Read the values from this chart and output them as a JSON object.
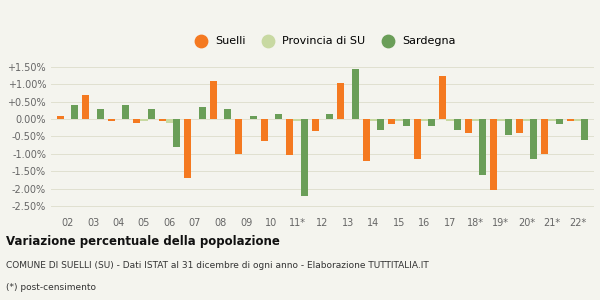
{
  "categories": [
    "02",
    "03",
    "04",
    "05",
    "06",
    "07",
    "08",
    "09",
    "10",
    "11*",
    "12",
    "13",
    "14",
    "15",
    "16",
    "17",
    "18*",
    "19*",
    "20*",
    "21*",
    "22*"
  ],
  "suelli": [
    0.08,
    0.68,
    -0.05,
    -0.1,
    -0.05,
    -1.7,
    1.1,
    -1.0,
    -0.62,
    -1.02,
    -0.35,
    1.05,
    -1.2,
    -0.15,
    -1.15,
    1.25,
    -0.4,
    -2.05,
    -0.4,
    -1.0,
    -0.05
  ],
  "provincia": [
    0.0,
    0.0,
    0.0,
    -0.05,
    -0.1,
    0.0,
    0.0,
    0.0,
    0.0,
    -0.05,
    0.0,
    0.0,
    -0.05,
    -0.05,
    -0.05,
    -0.05,
    -0.05,
    -0.05,
    -0.05,
    -0.05,
    -0.05
  ],
  "sardegna": [
    0.4,
    0.3,
    0.4,
    0.3,
    -0.8,
    0.35,
    0.3,
    0.08,
    0.15,
    -2.2,
    0.15,
    1.45,
    -0.3,
    -0.2,
    -0.2,
    -0.3,
    -1.6,
    -0.45,
    -1.15,
    -0.15,
    -0.6
  ],
  "color_suelli": "#f47920",
  "color_provincia": "#c8d9a2",
  "color_sardegna": "#6a9e58",
  "bar_width": 0.28,
  "ylim": [
    -2.7,
    1.7
  ],
  "yticks": [
    -2.5,
    -2.0,
    -1.5,
    -1.0,
    -0.5,
    0.0,
    0.5,
    1.0,
    1.5
  ],
  "ytick_labels": [
    "-2.50%",
    "-2.00%",
    "-1.50%",
    "-1.00%",
    "-0.50%",
    "0.00%",
    "+0.50%",
    "+1.00%",
    "+1.50%"
  ],
  "title": "Variazione percentuale della popolazione",
  "subtitle": "COMUNE DI SUELLI (SU) - Dati ISTAT al 31 dicembre di ogni anno - Elaborazione TUTTITALIA.IT",
  "footnote": "(*) post-censimento",
  "legend_labels": [
    "Suelli",
    "Provincia di SU",
    "Sardegna"
  ],
  "bg_color": "#f4f4ee",
  "grid_color": "#e0e0d0"
}
